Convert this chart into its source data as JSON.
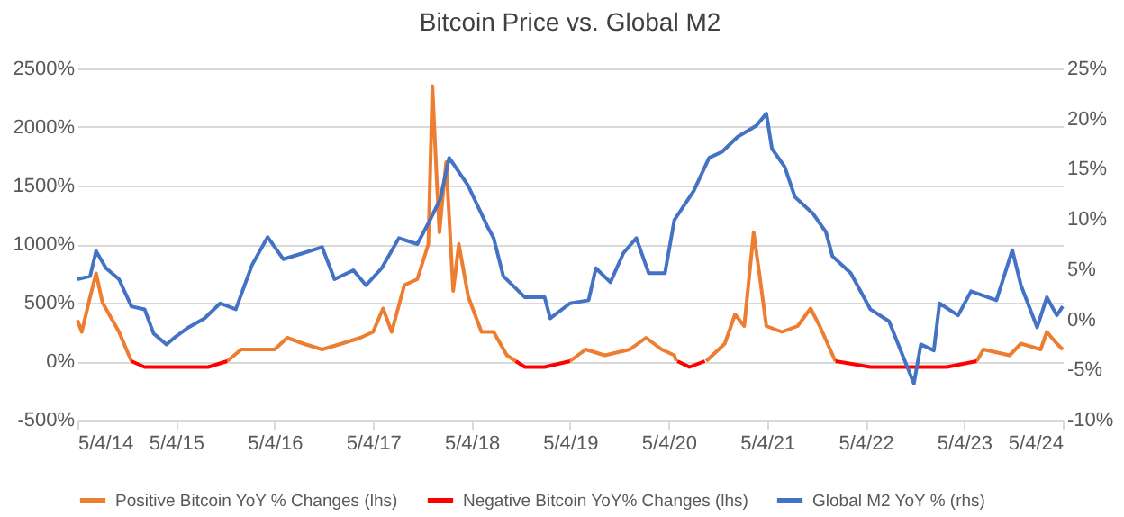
{
  "chart_data": {
    "type": "line",
    "title": "Bitcoin Price vs. Global M2",
    "xlim": [
      "2014-05-04",
      "2024-05-04"
    ],
    "xticks": [
      {
        "value": "2014-05-04",
        "label": "5/4/14"
      },
      {
        "value": "2015-05-04",
        "label": "5/4/15"
      },
      {
        "value": "2016-05-04",
        "label": "5/4/16"
      },
      {
        "value": "2017-05-04",
        "label": "5/4/17"
      },
      {
        "value": "2018-05-04",
        "label": "5/4/18"
      },
      {
        "value": "2019-05-04",
        "label": "5/4/19"
      },
      {
        "value": "2020-05-04",
        "label": "5/4/20"
      },
      {
        "value": "2021-05-04",
        "label": "5/4/21"
      },
      {
        "value": "2022-05-04",
        "label": "5/4/22"
      },
      {
        "value": "2023-05-04",
        "label": "5/4/23"
      },
      {
        "value": "2024-05-04",
        "label": "5/4/24"
      }
    ],
    "ylim": [
      -500,
      2500
    ],
    "yticks": [
      {
        "value": -500,
        "label": "-500%"
      },
      {
        "value": 0,
        "label": "0%"
      },
      {
        "value": 500,
        "label": "500%"
      },
      {
        "value": 1000,
        "label": "1000%"
      },
      {
        "value": 1500,
        "label": "1500%"
      },
      {
        "value": 2000,
        "label": "2000%"
      },
      {
        "value": 2500,
        "label": "2500%"
      }
    ],
    "y2lim": [
      -10,
      25
    ],
    "y2ticks": [
      {
        "value": -10,
        "label": "-10%"
      },
      {
        "value": -5,
        "label": "-5%"
      },
      {
        "value": 0,
        "label": "0%"
      },
      {
        "value": 5,
        "label": "5%"
      },
      {
        "value": 10,
        "label": "10%"
      },
      {
        "value": 15,
        "label": "15%"
      },
      {
        "value": 20,
        "label": "20%"
      },
      {
        "value": 25,
        "label": "25%"
      }
    ],
    "grid": "y",
    "legend": "bottom",
    "line_style": "solid",
    "marker": "none",
    "series": [
      {
        "name": "Positive Bitcoin YoY % Changes (lhs)",
        "color": "#ed7d31",
        "x": [
          "2014-05-04",
          "2014-05-20",
          "2014-06-20",
          "2014-07-12",
          "2014-08-05",
          "2014-10-05",
          "2014-11-20",
          "2015-05-04",
          "2015-11-10",
          "2016-01-01",
          "2016-05-04",
          "2016-06-20",
          "2016-08-18",
          "2016-10-27",
          "2017-01-08",
          "2017-03-18",
          "2017-05-04",
          "2017-06-10",
          "2017-07-12",
          "2017-08-28",
          "2017-10-15",
          "2017-11-25",
          "2017-12-10",
          "2017-12-25",
          "2018-01-05",
          "2018-01-15",
          "2018-01-30",
          "2018-02-25",
          "2018-03-18",
          "2018-04-22",
          "2018-06-10",
          "2018-07-25",
          "2018-09-12",
          "2018-10-15",
          "2019-01-01",
          "2019-05-04",
          "2019-07-01",
          "2019-09-10",
          "2019-12-12",
          "2020-02-10",
          "2020-04-08",
          "2020-05-25",
          "2020-06-01",
          "2020-07-15",
          "2020-09-20",
          "2020-11-28",
          "2021-01-05",
          "2021-02-08",
          "2021-03-15",
          "2021-04-05",
          "2021-05-01",
          "2021-06-28",
          "2021-08-25",
          "2021-10-12",
          "2021-11-15",
          "2022-01-12",
          "2022-09-01",
          "2023-06-20",
          "2023-07-15",
          "2023-10-20",
          "2023-12-01",
          "2024-02-12",
          "2024-03-06",
          "2024-04-12",
          "2024-05-04"
        ],
        "values": [
          350,
          250,
          550,
          750,
          500,
          250,
          0,
          null,
          0,
          100,
          100,
          200,
          150,
          100,
          150,
          200,
          250,
          450,
          250,
          650,
          700,
          1000,
          2350,
          1600,
          1100,
          1350,
          1700,
          600,
          1000,
          550,
          250,
          250,
          50,
          0,
          null,
          0,
          100,
          50,
          100,
          200,
          100,
          50,
          0,
          null,
          0,
          150,
          400,
          300,
          1100,
          750,
          300,
          250,
          300,
          450,
          300,
          0,
          null,
          0,
          100,
          50,
          150,
          100,
          250,
          150,
          100
        ]
      },
      {
        "name": "Negative Bitcoin YoY% Changes (lhs)",
        "color": "#ff0000",
        "x": [
          "2014-11-20",
          "2015-01-08",
          "2015-05-04",
          "2015-09-01",
          "2015-11-10",
          "2016-06-01",
          "2018-10-15",
          "2018-11-18",
          "2019-01-30",
          "2019-05-04",
          "2019-12-01",
          "2020-06-05",
          "2020-07-20",
          "2020-09-15",
          "2021-06-01",
          "2022-01-12",
          "2022-05-22",
          "2022-09-01",
          "2022-11-25",
          "2023-03-01",
          "2023-06-20"
        ],
        "values": [
          0,
          -50,
          -50,
          -50,
          0,
          null,
          0,
          -50,
          -50,
          0,
          null,
          0,
          -50,
          0,
          null,
          0,
          -50,
          -50,
          -50,
          -50,
          0
        ]
      },
      {
        "name": "Global M2 YoY % (rhs)",
        "color": "#4472c4",
        "axis": "y2",
        "x": [
          "2014-05-04",
          "2014-06-20",
          "2014-07-12",
          "2014-08-18",
          "2014-10-05",
          "2014-11-20",
          "2015-01-08",
          "2015-02-10",
          "2015-03-30",
          "2015-05-04",
          "2015-06-20",
          "2015-08-18",
          "2015-10-15",
          "2015-12-12",
          "2016-02-10",
          "2016-04-08",
          "2016-06-05",
          "2016-08-18",
          "2016-10-27",
          "2016-12-12",
          "2017-02-20",
          "2017-04-08",
          "2017-06-05",
          "2017-08-08",
          "2017-10-15",
          "2017-12-01",
          "2018-01-08",
          "2018-02-10",
          "2018-04-20",
          "2018-07-01",
          "2018-07-25",
          "2018-08-30",
          "2018-11-18",
          "2019-01-30",
          "2019-02-20",
          "2019-05-04",
          "2019-07-12",
          "2019-08-08",
          "2019-10-01",
          "2019-11-18",
          "2020-01-05",
          "2020-02-20",
          "2020-04-20",
          "2020-05-25",
          "2020-08-05",
          "2020-10-01",
          "2020-11-18",
          "2021-01-15",
          "2021-03-25",
          "2021-05-01",
          "2021-05-22",
          "2021-07-08",
          "2021-08-15",
          "2021-10-22",
          "2021-12-08",
          "2022-01-01",
          "2022-03-10",
          "2022-05-22",
          "2022-07-30",
          "2022-10-08",
          "2022-10-30",
          "2022-11-25",
          "2023-01-12",
          "2023-02-02",
          "2023-04-12",
          "2023-05-30",
          "2023-09-01",
          "2023-10-30",
          "2023-12-01",
          "2024-01-30",
          "2024-03-06",
          "2024-04-12",
          "2024-05-04"
        ],
        "values": [
          4.0,
          4.3,
          6.8,
          5.1,
          4.0,
          1.3,
          1.0,
          -1.4,
          -2.5,
          -1.7,
          -0.8,
          0.1,
          1.6,
          1.0,
          5.4,
          8.2,
          6.0,
          6.6,
          7.2,
          4.0,
          4.9,
          3.4,
          5.1,
          8.1,
          7.5,
          9.9,
          12.0,
          16.1,
          13.4,
          9.3,
          8.1,
          4.3,
          2.2,
          2.2,
          0.1,
          1.6,
          1.9,
          5.1,
          3.7,
          6.6,
          8.1,
          4.6,
          4.6,
          9.9,
          12.8,
          16.1,
          16.7,
          18.2,
          19.3,
          20.5,
          17.0,
          15.2,
          12.2,
          10.5,
          8.7,
          6.3,
          4.6,
          1.0,
          -0.2,
          -4.9,
          -6.4,
          -2.5,
          -3.1,
          1.6,
          0.4,
          2.8,
          1.9,
          6.9,
          3.4,
          -0.8,
          2.2,
          0.4,
          1.3
        ]
      }
    ]
  }
}
